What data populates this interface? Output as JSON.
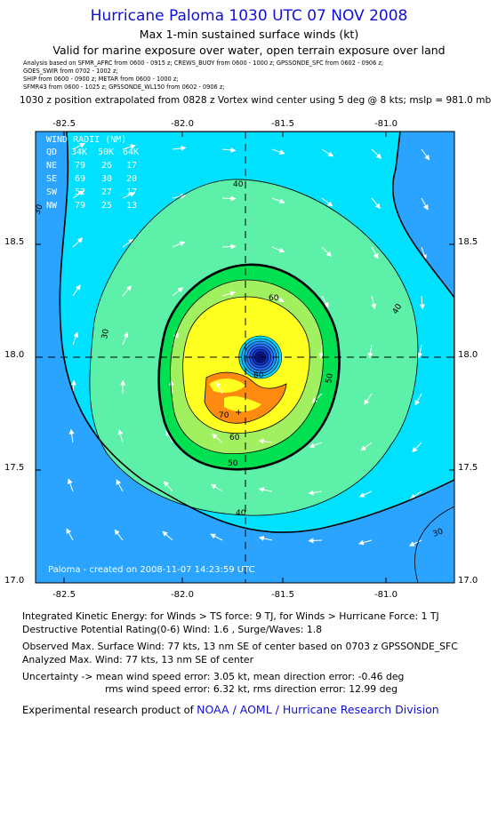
{
  "header": {
    "title": "Hurricane Paloma 1030 UTC 07 NOV 2008",
    "subtitle1": "Max 1-min sustained surface winds (kt)",
    "subtitle2": "Valid for marine exposure over water, open terrain exposure over land",
    "analysis_lines": [
      "Analysis based on  SFMR_AFRC from 0600 - 0915 z;  CREWS_BUOY from 0600 - 1000 z;  GPSSONDE_SFC from 0602 - 0906 z;",
      "GOES_SWIR from 0702 - 1002 z;",
      "SHIP from 0600 - 0900 z;   METAR from 0600 - 1000 z;",
      "SFMR43 from 0600 - 1025 z;  GPSSONDE_WL150 from 0602 - 0906 z;"
    ],
    "position_line": "1030 z position extrapolated from 0828 z Vortex wind center using 5 deg @ 8 kts; mslp = 981.0 mb"
  },
  "wind_radii": {
    "title": "WIND RADII (NM)",
    "header": [
      "QD",
      "34K",
      "50K",
      "64K"
    ],
    "rows": [
      [
        "NE",
        "79",
        "26",
        "17"
      ],
      [
        "SE",
        "69",
        "30",
        "20"
      ],
      [
        "SW",
        "52",
        "27",
        "17"
      ],
      [
        "NW",
        "79",
        "25",
        "13"
      ]
    ]
  },
  "credit": "Paloma - created on 2008-11-07 14:23:59 UTC",
  "chart_data": {
    "type": "contour",
    "x_ticks": [
      "-82.5",
      "-82.0",
      "-81.5",
      "-81.0"
    ],
    "y_ticks": [
      "18.5",
      "18.0",
      "17.5",
      "17.0"
    ],
    "xlim": [
      -82.75,
      -80.7
    ],
    "ylim": [
      16.99,
      18.99
    ],
    "center": {
      "lon": -81.65,
      "lat": 17.99
    },
    "max_wind": {
      "lon": -81.62,
      "lat": 17.77,
      "speed": 77
    },
    "contour_labels": [
      "30",
      "40",
      "50",
      "60",
      "70",
      "80"
    ],
    "contour_levels": [
      30,
      40,
      50,
      60,
      70,
      80
    ],
    "color_bands": [
      {
        "min": 0,
        "max": 30,
        "color": "#2aa4ff"
      },
      {
        "min": 30,
        "max": 40,
        "color": "#00e0ff"
      },
      {
        "min": 40,
        "max": 50,
        "color": "#5cf0a8"
      },
      {
        "min": 50,
        "max": 60,
        "color": "#00e050"
      },
      {
        "min": 60,
        "max": 70,
        "color": "#a0f060"
      },
      {
        "min": 70,
        "max": 80,
        "color": "#ffff20"
      },
      {
        "min": 80,
        "max": 100,
        "color": "#ff8a10"
      }
    ]
  },
  "info": {
    "ike": "Integrated Kinetic Energy:  for Winds > TS force: 9 TJ,  for Winds > Hurricane Force: 1 TJ",
    "dpr": "Destructive Potential Rating(0-6)   Wind: 1.6 , Surge/Waves: 1.8",
    "observed": "Observed Max. Surface Wind: 77 kts, 13 nm SE of center based on 0703 z GPSSONDE_SFC",
    "analyzed": "Analyzed Max. Wind: 77 kts, 13 nm SE of center",
    "uncert1": "Uncertainty -> mean wind speed error: 3.05 kt,   mean direction error:  -0.46 deg",
    "uncert2": "rms wind speed error: 6.32 kt,   rms direction error: 12.99 deg",
    "research_prefix": "Experimental research product of",
    "research_link": "NOAA / AOML / Hurricane Research Division"
  }
}
